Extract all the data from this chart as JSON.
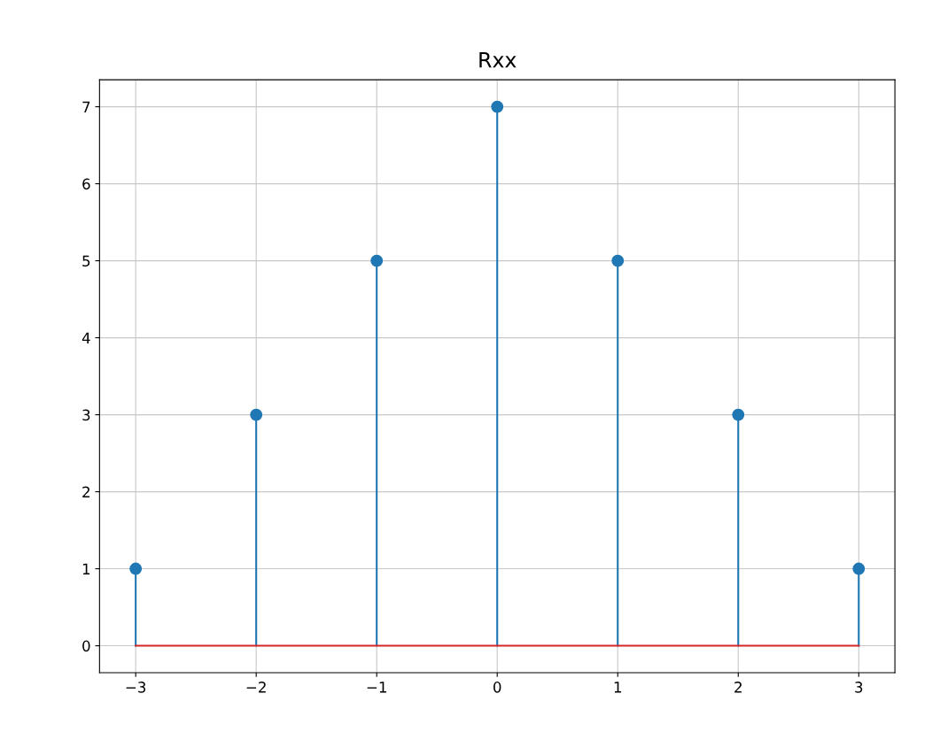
{
  "chart_data": {
    "type": "lollipop",
    "title": "Rxx",
    "x": [
      -3,
      -2,
      -1,
      0,
      1,
      2,
      3
    ],
    "series": [
      {
        "color": "#1f77b4",
        "values": [
          1,
          3,
          5,
          7,
          5,
          3,
          1
        ]
      }
    ],
    "marker": "circle",
    "xlim": [
      -3.3,
      3.3
    ],
    "xticks": [
      -3,
      -2,
      -1,
      0,
      1,
      2,
      3
    ],
    "ylim": [
      -0.35,
      7.35
    ],
    "yticks": [
      0,
      1,
      2,
      3,
      4,
      5,
      6,
      7
    ],
    "ref_lines": [
      {
        "axis": "y",
        "value": 0,
        "color": "#d62728"
      }
    ],
    "grid": true
  }
}
